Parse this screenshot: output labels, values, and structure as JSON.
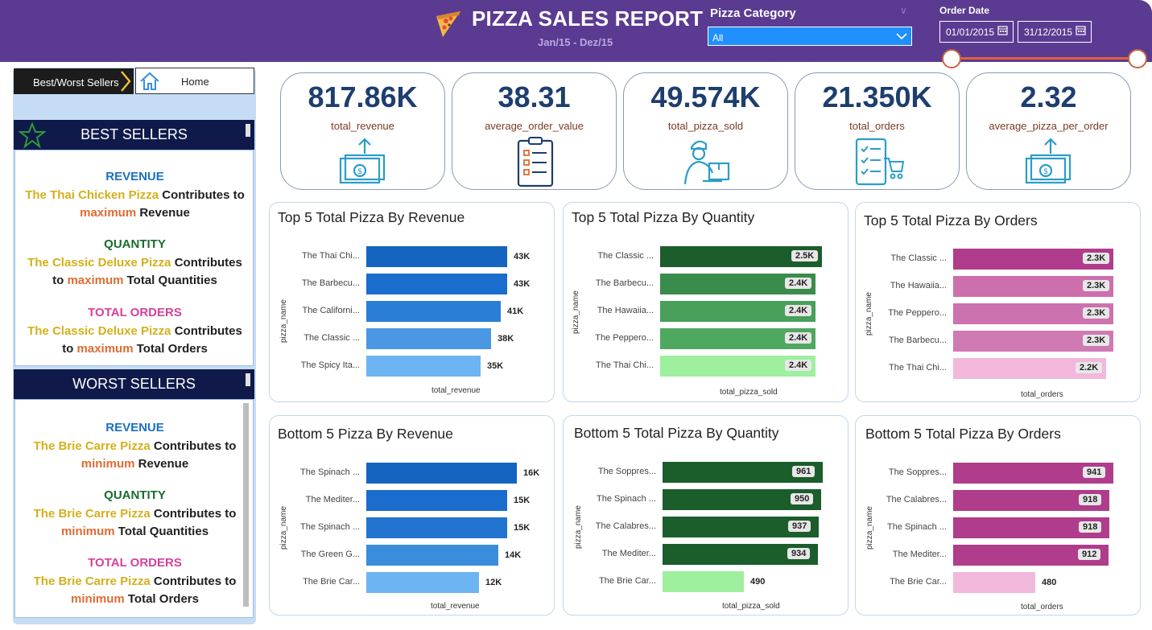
{
  "header": {
    "title": "PIZZA SALES REPORT",
    "subtitle": "Jan/15 - Dez/15",
    "category_label": "Pizza Category",
    "category_value": "All",
    "date_label": "Order Date",
    "date_from": "01/01/2015",
    "date_to": "31/12/2015"
  },
  "nav": {
    "best_label": "Best/Worst Sellers",
    "home_label": "Home"
  },
  "best_sellers": {
    "title": "BEST SELLERS",
    "rev_head": "REVENUE",
    "rev_l1_a": "The Thai Chicken Pizza",
    "rev_l1_b": " Contributes to",
    "rev_l2_a": "maximum",
    "rev_l2_b": " Revenue",
    "qty_head": "QUANTITY",
    "qty_l1_a": "The Classic Deluxe Pizza",
    "qty_l1_b": " Contributes",
    "qty_l2_a": "to ",
    "qty_l2_b": "maximum",
    "qty_l2_c": " Total Quantities",
    "ord_head": "TOTAL ORDERS",
    "ord_l1_a": "The Classic Deluxe Pizza",
    "ord_l1_b": " Contributes",
    "ord_l2_a": "to ",
    "ord_l2_b": "maximum",
    "ord_l2_c": " Total Orders"
  },
  "worst_sellers": {
    "title": "WORST SELLERS",
    "rev_head": "REVENUE",
    "rev_l1_a": "The Brie Carre Pizza",
    "rev_l1_b": " Contributes to",
    "rev_l2_a": "minimum",
    "rev_l2_b": " Revenue",
    "qty_head": "QUANTITY",
    "qty_l1_a": "The Brie Carre Pizza",
    "qty_l1_b": " Contributes to",
    "qty_l2_a": "minimum",
    "qty_l2_b": " Total Quantities",
    "ord_head": "TOTAL ORDERS",
    "ord_l1_a": "The Brie Carre Pizza",
    "ord_l1_b": " Contributes to",
    "ord_l2_a": "minimum",
    "ord_l2_b": "  Total Orders"
  },
  "kpis": [
    {
      "value": "817.86K",
      "label": "total_revenue",
      "icon": "money-upload-icon"
    },
    {
      "value": "38.31",
      "label": "average_order_value",
      "icon": "clipboard-checklist-icon"
    },
    {
      "value": "49.574K",
      "label": "total_pizza_sold",
      "icon": "delivery-person-icon"
    },
    {
      "value": "21.350K",
      "label": "total_orders",
      "icon": "order-list-cart-icon"
    },
    {
      "value": "2.32",
      "label": "average_pizza_per_order",
      "icon": "money-upload-icon"
    }
  ],
  "chart_data": [
    {
      "type": "bar",
      "orientation": "horizontal",
      "title": "Top 5 Total Pizza By Revenue",
      "xlabel": "total_revenue",
      "ylabel": "pizza_name",
      "categories": [
        "The Thai Chi...",
        "The Barbecu...",
        "The Californi...",
        "The Classic ...",
        "The Spicy Ita..."
      ],
      "values": [
        43,
        43,
        41,
        38,
        35
      ],
      "value_labels": [
        "43K",
        "43K",
        "41K",
        "38K",
        "35K"
      ],
      "colors": [
        "#1565c0",
        "#1a6dcc",
        "#2b7ed6",
        "#4a98e4",
        "#6db4f2"
      ],
      "label_style": "outside",
      "max": 43.5
    },
    {
      "type": "bar",
      "orientation": "horizontal",
      "title": "Top 5 Total Pizza By Quantity",
      "xlabel": "total_pizza_sold",
      "ylabel": "pizza_name",
      "categories": [
        "The Classic ...",
        "The Barbecu...",
        "The Hawaiia...",
        "The Peppero...",
        "The Thai Chi..."
      ],
      "values": [
        2.5,
        2.4,
        2.4,
        2.4,
        2.4
      ],
      "value_labels": [
        "2.5K",
        "2.4K",
        "2.4K",
        "2.4K",
        "2.4K"
      ],
      "colors": [
        "#1b5e2c",
        "#3a8c4c",
        "#48a05a",
        "#4fa860",
        "#9ef09e"
      ],
      "label_style": "inside",
      "max": 2.5
    },
    {
      "type": "bar",
      "orientation": "horizontal",
      "title": "Top 5 Total Pizza By Orders",
      "xlabel": "total_orders",
      "ylabel": "pizza_name",
      "categories": [
        "The Classic ...",
        "The Hawaiia...",
        "The Peppero...",
        "The Barbecu...",
        "The Thai Chi..."
      ],
      "values": [
        2.3,
        2.3,
        2.3,
        2.3,
        2.2
      ],
      "value_labels": [
        "2.3K",
        "2.3K",
        "2.3K",
        "2.3K",
        "2.2K"
      ],
      "colors": [
        "#b03c8c",
        "#cc6fac",
        "#cc72ae",
        "#cf7ab3",
        "#f2b8dc"
      ],
      "label_style": "inside",
      "max": 2.3
    },
    {
      "type": "bar",
      "orientation": "horizontal",
      "title": "Bottom 5 Pizza By Revenue",
      "xlabel": "total_revenue",
      "ylabel": "pizza_name",
      "categories": [
        "The Spinach ...",
        "The Mediter...",
        "The Spinach ...",
        "The Green G...",
        "The Brie Car..."
      ],
      "values": [
        16,
        15,
        15,
        14,
        12
      ],
      "value_labels": [
        "16K",
        "15K",
        "15K",
        "14K",
        "12K"
      ],
      "colors": [
        "#1565c0",
        "#1a6dcc",
        "#2373d0",
        "#3a8cdc",
        "#6db4f2"
      ],
      "label_style": "outside",
      "max": 16
    },
    {
      "type": "bar",
      "orientation": "horizontal",
      "title": "Bottom 5 Total Pizza By Quantity",
      "xlabel": "total_pizza_sold",
      "ylabel": "pizza_name",
      "categories": [
        "The Soppres...",
        "The Spinach ...",
        "The Calabres...",
        "The Mediter...",
        "The Brie Car..."
      ],
      "values": [
        961,
        950,
        937,
        934,
        490
      ],
      "value_labels": [
        "961",
        "950",
        "937",
        "934",
        "490"
      ],
      "colors": [
        "#1b5e2c",
        "#1b5e2c",
        "#1b5e2c",
        "#1b5e2c",
        "#9ef09e"
      ],
      "label_style": "mixed",
      "max": 961
    },
    {
      "type": "bar",
      "orientation": "horizontal",
      "title": "Bottom 5 Total Pizza By Orders",
      "xlabel": "total_orders",
      "ylabel": "pizza_name",
      "categories": [
        "The Soppres...",
        "The Calabres...",
        "The Spinach ...",
        "The Mediter...",
        "The Brie Car..."
      ],
      "values": [
        941,
        918,
        918,
        912,
        480
      ],
      "value_labels": [
        "941",
        "918",
        "918",
        "912",
        "480"
      ],
      "colors": [
        "#b03c8c",
        "#b03c8c",
        "#b03c8c",
        "#b03c8c",
        "#f2b8dc"
      ],
      "label_style": "mixed",
      "max": 941
    }
  ]
}
